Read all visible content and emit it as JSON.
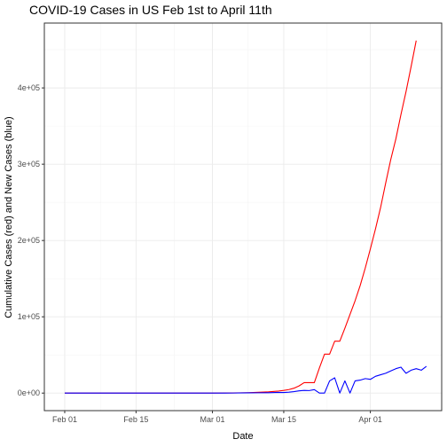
{
  "chart_data": {
    "type": "line",
    "title": "COVID-19 Cases in US Feb 1st to April 11th",
    "xlabel": "Date",
    "ylabel": "Cumulative Cases (red) and New Cases (blue)",
    "x_ticks": [
      {
        "label": "Feb 01",
        "day": 0
      },
      {
        "label": "Feb 15",
        "day": 14
      },
      {
        "label": "Mar 01",
        "day": 29
      },
      {
        "label": "Mar 15",
        "day": 43
      },
      {
        "label": "Apr 01",
        "day": 60
      }
    ],
    "y_ticks": [
      {
        "label": "0e+00",
        "value": 0
      },
      {
        "label": "1e+05",
        "value": 100000
      },
      {
        "label": "2e+05",
        "value": 200000
      },
      {
        "label": "3e+05",
        "value": 300000
      },
      {
        "label": "4e+05",
        "value": 400000
      }
    ],
    "xlim": [
      "2020-01-28",
      "2020-04-15"
    ],
    "ylim": [
      -23000,
      485000
    ],
    "grid": true,
    "series": [
      {
        "color": "#ff0000",
        "points": [
          [
            "2020-02-01",
            0
          ],
          [
            "2020-02-15",
            15
          ],
          [
            "2020-03-01",
            75
          ],
          [
            "2020-03-05",
            220
          ],
          [
            "2020-03-08",
            540
          ],
          [
            "2020-03-10",
            1000
          ],
          [
            "2020-03-12",
            1600
          ],
          [
            "2020-03-14",
            2700
          ],
          [
            "2020-03-15",
            3500
          ],
          [
            "2020-03-16",
            4600
          ],
          [
            "2020-03-17",
            6400
          ],
          [
            "2020-03-18",
            9400
          ],
          [
            "2020-03-19",
            13700
          ],
          [
            "2020-03-20",
            13700
          ],
          [
            "2020-03-21",
            13700
          ],
          [
            "2020-03-22",
            33000
          ],
          [
            "2020-03-23",
            51000
          ],
          [
            "2020-03-24",
            51000
          ],
          [
            "2020-03-25",
            68000
          ],
          [
            "2020-03-26",
            68000
          ],
          [
            "2020-03-27",
            85000
          ],
          [
            "2020-03-28",
            103000
          ],
          [
            "2020-03-29",
            121000
          ],
          [
            "2020-03-30",
            141000
          ],
          [
            "2020-03-31",
            164000
          ],
          [
            "2020-04-01",
            189000
          ],
          [
            "2020-04-02",
            215000
          ],
          [
            "2020-04-03",
            243000
          ],
          [
            "2020-04-04",
            275000
          ],
          [
            "2020-04-05",
            306000
          ],
          [
            "2020-04-06",
            333000
          ],
          [
            "2020-04-07",
            365000
          ],
          [
            "2020-04-08",
            395000
          ],
          [
            "2020-04-09",
            428000
          ],
          [
            "2020-04-10",
            462000
          ]
        ]
      },
      {
        "color": "#0000ff",
        "points": [
          [
            "2020-02-01",
            0
          ],
          [
            "2020-02-15",
            0
          ],
          [
            "2020-03-01",
            10
          ],
          [
            "2020-03-05",
            100
          ],
          [
            "2020-03-08",
            300
          ],
          [
            "2020-03-10",
            400
          ],
          [
            "2020-03-12",
            500
          ],
          [
            "2020-03-14",
            900
          ],
          [
            "2020-03-15",
            800
          ],
          [
            "2020-03-16",
            1200
          ],
          [
            "2020-03-17",
            1900
          ],
          [
            "2020-03-18",
            2900
          ],
          [
            "2020-03-19",
            3500
          ],
          [
            "2020-03-20",
            3300
          ],
          [
            "2020-03-21",
            4500
          ],
          [
            "2020-03-22",
            0
          ],
          [
            "2020-03-23",
            0
          ],
          [
            "2020-03-24",
            16000
          ],
          [
            "2020-03-25",
            20000
          ],
          [
            "2020-03-26",
            0
          ],
          [
            "2020-03-27",
            16000
          ],
          [
            "2020-03-28",
            0
          ],
          [
            "2020-03-29",
            16000
          ],
          [
            "2020-03-30",
            17000
          ],
          [
            "2020-03-31",
            19000
          ],
          [
            "2020-04-01",
            18000
          ],
          [
            "2020-04-02",
            22000
          ],
          [
            "2020-04-03",
            24000
          ],
          [
            "2020-04-04",
            26000
          ],
          [
            "2020-04-05",
            29000
          ],
          [
            "2020-04-06",
            32000
          ],
          [
            "2020-04-07",
            34000
          ],
          [
            "2020-04-08",
            26000
          ],
          [
            "2020-04-09",
            30000
          ],
          [
            "2020-04-10",
            32000
          ],
          [
            "2020-04-11",
            30000
          ],
          [
            "2020-04-12",
            35000
          ]
        ]
      }
    ]
  }
}
